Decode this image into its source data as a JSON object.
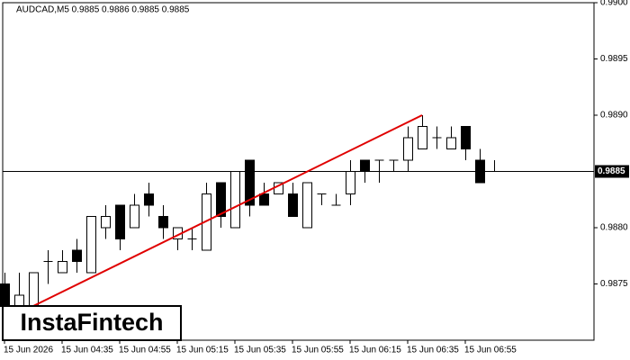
{
  "chart_data": {
    "type": "candlestick",
    "title": "AUDCAD,M5  0.9885 0.9886 0.9885 0.9885",
    "categories": [
      "15 Jun 2026",
      null,
      null,
      null,
      "15 Jun 04:35",
      null,
      null,
      null,
      "15 Jun 04:55",
      null,
      null,
      null,
      "15 Jun 05:15",
      null,
      null,
      null,
      "15 Jun 05:35",
      null,
      null,
      null,
      "15 Jun 05:55",
      null,
      null,
      null,
      "15 Jun 06:15",
      null,
      null,
      null,
      "15 Jun 06:35",
      null,
      null,
      null,
      "15 Jun 06:55",
      null,
      null
    ],
    "open": [
      0.9875,
      0.9873,
      0.9873,
      0.9877,
      0.9876,
      0.9878,
      0.9876,
      0.988,
      0.9882,
      0.988,
      0.9883,
      0.9881,
      0.9879,
      0.9879,
      0.9878,
      0.9884,
      0.988,
      0.9886,
      0.9883,
      0.9883,
      0.9883,
      0.988,
      0.9883,
      0.9882,
      0.9883,
      0.9886,
      0.9886,
      0.9886,
      0.9886,
      0.9887,
      0.9888,
      0.9887,
      0.9889,
      0.9886,
      0.9885
    ],
    "high": [
      0.9876,
      0.9876,
      0.9876,
      0.9878,
      0.9878,
      0.9879,
      0.9881,
      0.9882,
      0.9882,
      0.9883,
      0.9884,
      0.9882,
      0.988,
      0.988,
      0.9884,
      0.9884,
      0.9885,
      0.9886,
      0.9884,
      0.9884,
      0.9884,
      0.9884,
      0.9883,
      0.9883,
      0.9886,
      0.9886,
      0.9886,
      0.9886,
      0.9889,
      0.989,
      0.9889,
      0.9889,
      0.9889,
      0.9887,
      0.9886
    ],
    "low": [
      0.9872,
      0.9873,
      0.9873,
      0.9875,
      0.9876,
      0.9876,
      0.9876,
      0.9879,
      0.9878,
      0.988,
      0.9881,
      0.9879,
      0.9878,
      0.9878,
      0.9878,
      0.988,
      0.988,
      0.9881,
      0.9882,
      0.9883,
      0.9881,
      0.988,
      0.9882,
      0.9882,
      0.9882,
      0.9884,
      0.9884,
      0.9885,
      0.9885,
      0.9887,
      0.9887,
      0.9887,
      0.9886,
      0.9884,
      0.9885
    ],
    "close": [
      0.9873,
      0.9874,
      0.9876,
      0.9877,
      0.9877,
      0.9877,
      0.9881,
      0.9881,
      0.9879,
      0.9882,
      0.9882,
      0.988,
      0.988,
      0.9879,
      0.9883,
      0.9881,
      0.9885,
      0.9882,
      0.9882,
      0.9884,
      0.9881,
      0.9884,
      0.9883,
      0.9882,
      0.9885,
      0.9885,
      0.9886,
      0.9886,
      0.9888,
      0.9889,
      0.9888,
      0.9888,
      0.9887,
      0.9884,
      0.9885
    ],
    "up_color": "#ffffff",
    "down_color": "#000000",
    "ylim": [
      0.987,
      0.99
    ],
    "yticks": [
      {
        "value": 0.99,
        "label": "0.9900"
      },
      0.9895,
      {
        "value": 0.989,
        "label": "0.9890"
      },
      {
        "value": 0.988,
        "label": "0.9880"
      },
      0.9875
    ],
    "current_price": 0.9885,
    "trendline": {
      "start": 0.9873,
      "end": 0.989,
      "color": "#e00000"
    },
    "watermark": "InstaFintech"
  }
}
